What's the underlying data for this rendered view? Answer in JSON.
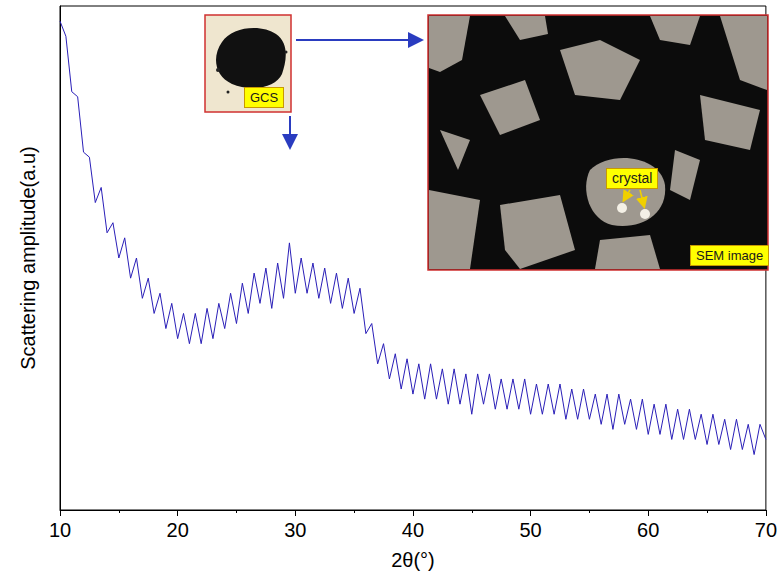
{
  "chart_data": {
    "type": "line",
    "x_label": "2θ(°)",
    "y_label": "Scattering amplitude(a.u)",
    "color": "#2a1fb8",
    "xlim": [
      10,
      70
    ],
    "xticks": [
      10,
      20,
      30,
      40,
      50,
      60,
      70
    ],
    "ylim": [
      0,
      100
    ],
    "tick_labels": "x",
    "grid": false,
    "annotations": [
      "GCS",
      "crystal",
      "SEM image"
    ],
    "x": [
      10,
      10.5,
      11,
      11.5,
      12,
      12.5,
      13,
      13.5,
      14,
      14.5,
      15,
      15.5,
      16,
      16.5,
      17,
      17.5,
      18,
      18.5,
      19,
      19.5,
      20,
      20.5,
      21,
      21.5,
      22,
      22.5,
      23,
      23.5,
      24,
      24.5,
      25,
      25.5,
      26,
      26.5,
      27,
      27.5,
      28,
      28.5,
      29,
      29.5,
      30,
      30.5,
      31,
      31.5,
      32,
      32.5,
      33,
      33.5,
      34,
      34.5,
      35,
      35.5,
      36,
      36.5,
      37,
      37.5,
      38,
      38.5,
      39,
      39.5,
      40,
      40.5,
      41,
      41.5,
      42,
      42.5,
      43,
      43.5,
      44,
      44.5,
      45,
      45.5,
      46,
      46.5,
      47,
      47.5,
      48,
      48.5,
      49,
      49.5,
      50,
      50.5,
      51,
      51.5,
      52,
      52.5,
      53,
      53.5,
      54,
      54.5,
      55,
      55.5,
      56,
      56.5,
      57,
      57.5,
      58,
      58.5,
      59,
      59.5,
      60,
      60.5,
      61,
      61.5,
      62,
      62.5,
      63,
      63.5,
      64,
      64.5,
      65,
      65.5,
      66,
      66.5,
      67,
      67.5,
      68,
      68.5,
      69,
      69.5,
      70
    ],
    "values": [
      97,
      94,
      83,
      82,
      71,
      70,
      61,
      64,
      55,
      57,
      50,
      54,
      46,
      50,
      42,
      46,
      39,
      43,
      36,
      41,
      34,
      39,
      33,
      39,
      33,
      40,
      34,
      41,
      36,
      43,
      37,
      45,
      39,
      47,
      41,
      48,
      40,
      49,
      42,
      53,
      43,
      50,
      43,
      49,
      42,
      48,
      41,
      47,
      40,
      46,
      39,
      44,
      35,
      37,
      29,
      33,
      26,
      31,
      24,
      30,
      23,
      29,
      22,
      29,
      22,
      28,
      21,
      28,
      21,
      27,
      19,
      27,
      21,
      27,
      20,
      26,
      20,
      26,
      20,
      26,
      19,
      25,
      19,
      25,
      19,
      25,
      18,
      24,
      18,
      24,
      18,
      23,
      17,
      23,
      16,
      23,
      17,
      22,
      16,
      22,
      15,
      21,
      15,
      21,
      14,
      20,
      14,
      20,
      14,
      19,
      13,
      19,
      13,
      18,
      12,
      18,
      12,
      17,
      11,
      17,
      14
    ]
  }
}
